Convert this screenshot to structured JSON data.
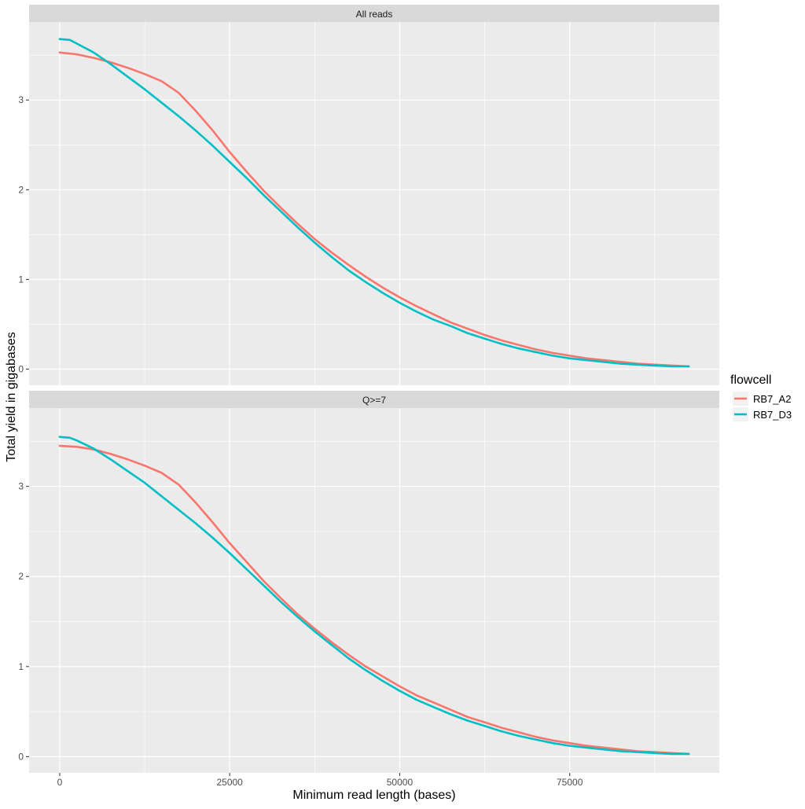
{
  "chart_data": {
    "type": "line",
    "xlabel": "Minimum read length (bases)",
    "ylabel": "Total yield in gigabases",
    "x_ticks": [
      0,
      25000,
      50000,
      75000
    ],
    "x_tick_labels": [
      "0",
      "25000",
      "50000",
      "75000"
    ],
    "xlim": [
      -4500,
      97000
    ],
    "grid": true,
    "legend": {
      "title": "flowcell",
      "placement": "right",
      "entries": [
        "RB7_A2",
        "RB7_D3"
      ]
    },
    "colors": {
      "RB7_A2": "#F8766D",
      "RB7_D3": "#00BFC4"
    },
    "facets": [
      {
        "label": "All reads",
        "ylim": [
          -0.18,
          3.87
        ],
        "y_ticks": [
          0,
          1,
          2,
          3
        ],
        "y_tick_labels": [
          "0",
          "1",
          "2",
          "3"
        ],
        "series": [
          {
            "name": "RB7_A2",
            "x": [
              0,
              2500,
              5000,
              7500,
              10000,
              12500,
              15000,
              17500,
              20000,
              22500,
              25000,
              27500,
              30000,
              32500,
              35000,
              37500,
              40000,
              42500,
              45000,
              47500,
              50000,
              52500,
              55000,
              57500,
              60000,
              62500,
              65000,
              67500,
              70000,
              72500,
              75000,
              77500,
              80000,
              82500,
              85000,
              87500,
              90000,
              92500
            ],
            "y": [
              3.53,
              3.51,
              3.47,
              3.42,
              3.36,
              3.29,
              3.21,
              3.08,
              2.88,
              2.66,
              2.42,
              2.2,
              1.99,
              1.8,
              1.62,
              1.45,
              1.3,
              1.16,
              1.03,
              0.91,
              0.8,
              0.7,
              0.61,
              0.52,
              0.45,
              0.38,
              0.32,
              0.27,
              0.22,
              0.18,
              0.15,
              0.12,
              0.1,
              0.08,
              0.06,
              0.05,
              0.04,
              0.03
            ]
          },
          {
            "name": "RB7_D3",
            "x": [
              0,
              1500,
              2500,
              5000,
              7500,
              10000,
              12500,
              15000,
              17500,
              20000,
              22500,
              25000,
              27500,
              30000,
              32500,
              35000,
              37500,
              40000,
              42500,
              45000,
              47500,
              50000,
              52500,
              55000,
              57500,
              60000,
              62500,
              65000,
              67500,
              70000,
              72500,
              75000,
              77500,
              80000,
              82500,
              85000,
              87500,
              90000,
              92500
            ],
            "y": [
              3.68,
              3.67,
              3.63,
              3.53,
              3.4,
              3.26,
              3.12,
              2.97,
              2.82,
              2.66,
              2.49,
              2.31,
              2.13,
              1.94,
              1.76,
              1.58,
              1.41,
              1.25,
              1.1,
              0.97,
              0.85,
              0.74,
              0.64,
              0.55,
              0.48,
              0.4,
              0.34,
              0.28,
              0.23,
              0.19,
              0.15,
              0.12,
              0.1,
              0.08,
              0.06,
              0.05,
              0.04,
              0.03,
              0.03
            ]
          }
        ]
      },
      {
        "label": "Q>=7",
        "ylim": [
          -0.18,
          3.87
        ],
        "y_ticks": [
          0,
          1,
          2,
          3
        ],
        "y_tick_labels": [
          "0",
          "1",
          "2",
          "3"
        ],
        "series": [
          {
            "name": "RB7_A2",
            "x": [
              0,
              2500,
              5000,
              7500,
              10000,
              12500,
              15000,
              17500,
              20000,
              22500,
              25000,
              27500,
              30000,
              32500,
              35000,
              37500,
              40000,
              42500,
              45000,
              47500,
              50000,
              52500,
              55000,
              57500,
              60000,
              62500,
              65000,
              67500,
              70000,
              72500,
              75000,
              77500,
              80000,
              82500,
              85000,
              87500,
              90000,
              92500
            ],
            "y": [
              3.45,
              3.44,
              3.41,
              3.36,
              3.3,
              3.23,
              3.15,
              3.02,
              2.82,
              2.6,
              2.37,
              2.16,
              1.95,
              1.76,
              1.58,
              1.42,
              1.27,
              1.13,
              1.0,
              0.89,
              0.78,
              0.68,
              0.6,
              0.52,
              0.44,
              0.38,
              0.32,
              0.27,
              0.22,
              0.18,
              0.15,
              0.12,
              0.1,
              0.08,
              0.06,
              0.05,
              0.04,
              0.03
            ]
          },
          {
            "name": "RB7_D3",
            "x": [
              0,
              1500,
              2500,
              5000,
              7500,
              10000,
              12500,
              15000,
              17500,
              20000,
              22500,
              25000,
              27500,
              30000,
              32500,
              35000,
              37500,
              40000,
              42500,
              45000,
              47500,
              50000,
              52500,
              55000,
              57500,
              60000,
              62500,
              65000,
              67500,
              70000,
              72500,
              75000,
              77500,
              80000,
              82500,
              85000,
              87500,
              90000,
              92500
            ],
            "y": [
              3.55,
              3.54,
              3.51,
              3.42,
              3.3,
              3.17,
              3.04,
              2.89,
              2.74,
              2.59,
              2.43,
              2.26,
              2.08,
              1.9,
              1.72,
              1.55,
              1.39,
              1.24,
              1.09,
              0.96,
              0.84,
              0.73,
              0.63,
              0.55,
              0.47,
              0.4,
              0.34,
              0.28,
              0.23,
              0.19,
              0.15,
              0.12,
              0.1,
              0.08,
              0.06,
              0.05,
              0.04,
              0.03,
              0.03
            ]
          }
        ]
      }
    ]
  }
}
